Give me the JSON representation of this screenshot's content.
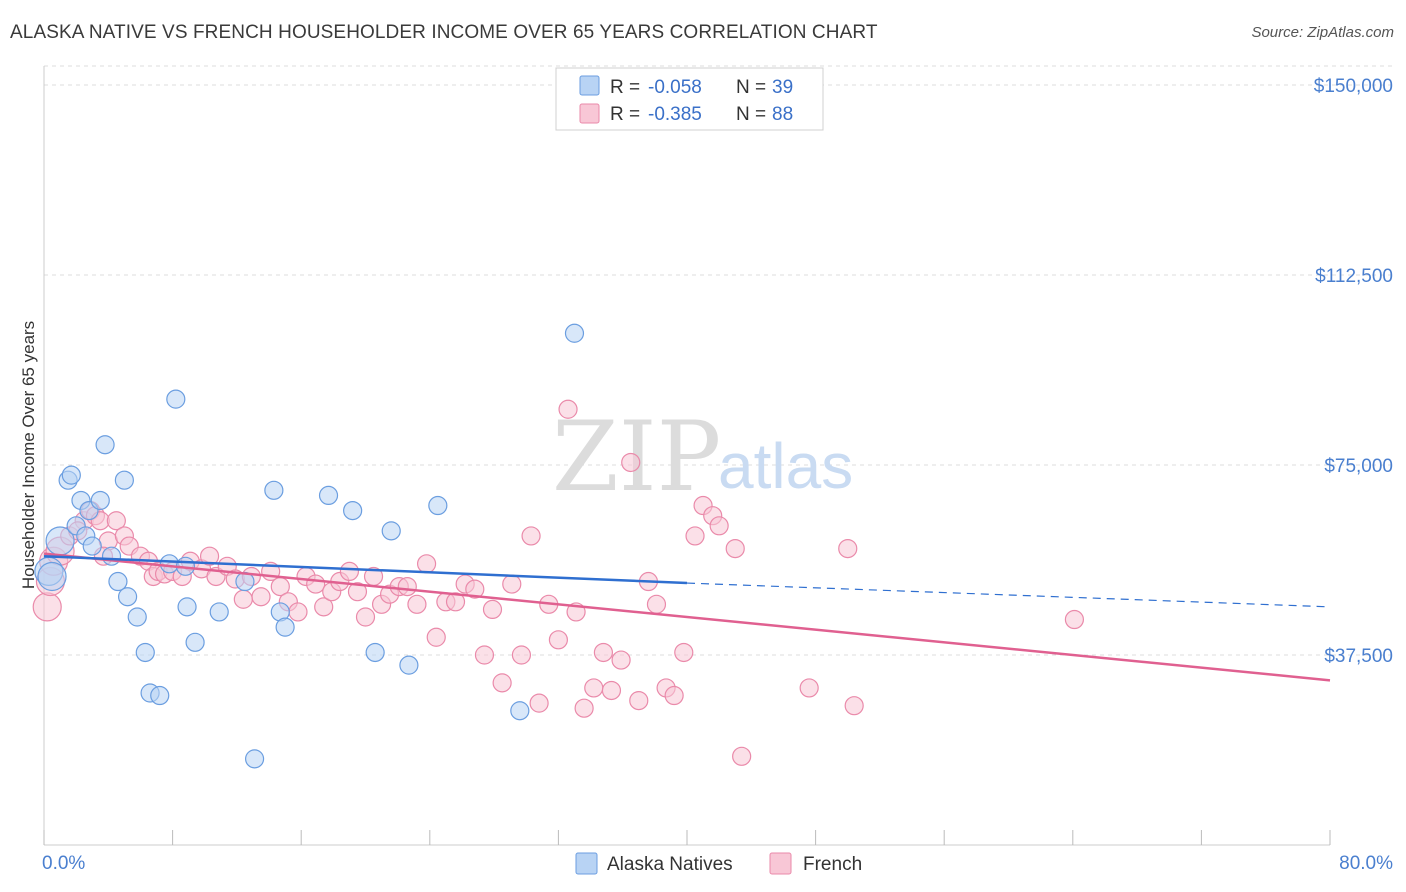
{
  "title": "ALASKA NATIVE VS FRENCH HOUSEHOLDER INCOME OVER 65 YEARS CORRELATION CHART",
  "source": "Source: ZipAtlas.com",
  "watermark": {
    "zip": "ZIP",
    "atlas": "atlas"
  },
  "colors": {
    "alaska_fill": "#b8d3f4",
    "alaska_stroke": "#6b9ee0",
    "alaska_line": "#2f6fd0",
    "french_fill": "#f8c7d6",
    "french_stroke": "#ea8aaa",
    "french_line": "#e06090",
    "grid": "#dddddd",
    "tick_text": "#4a7fcf"
  },
  "legend": {
    "rows": [
      {
        "r_label": "R =",
        "r_value": "-0.058",
        "n_label": "N =",
        "n_value": "39"
      },
      {
        "r_label": "R =",
        "r_value": "-0.385",
        "n_label": "N =",
        "n_value": "88"
      }
    ]
  },
  "chart_data": {
    "type": "scatter",
    "title": "ALASKA NATIVE VS FRENCH HOUSEHOLDER INCOME OVER 65 YEARS CORRELATION CHART",
    "xlabel": "",
    "ylabel": "Householder Income Over 65 years",
    "xlim": [
      0,
      80
    ],
    "ylim": [
      0,
      153750
    ],
    "x_tick_labels": [
      "0.0%",
      "80.0%"
    ],
    "y_ticks": [
      37500,
      75000,
      112500,
      150000
    ],
    "y_tick_labels": [
      "$37,500",
      "$75,000",
      "$112,500",
      "$150,000"
    ],
    "grid": true,
    "legend_position": "top-center",
    "series": [
      {
        "name": "Alaska Natives",
        "points": [
          [
            0.3,
            54000
          ],
          [
            0.5,
            53000
          ],
          [
            1.0,
            60000
          ],
          [
            1.5,
            72000
          ],
          [
            1.7,
            73000
          ],
          [
            2.0,
            63000
          ],
          [
            2.3,
            68000
          ],
          [
            2.6,
            61000
          ],
          [
            2.8,
            66000
          ],
          [
            3.0,
            59000
          ],
          [
            3.5,
            68000
          ],
          [
            3.8,
            79000
          ],
          [
            4.2,
            57000
          ],
          [
            4.6,
            52000
          ],
          [
            5.0,
            72000
          ],
          [
            5.2,
            49000
          ],
          [
            5.8,
            45000
          ],
          [
            6.3,
            38000
          ],
          [
            6.6,
            30000
          ],
          [
            7.2,
            29500
          ],
          [
            7.8,
            55500
          ],
          [
            8.2,
            88000
          ],
          [
            8.9,
            47000
          ],
          [
            9.4,
            40000
          ],
          [
            10.9,
            46000
          ],
          [
            12.5,
            52000
          ],
          [
            13.1,
            17000
          ],
          [
            14.3,
            70000
          ],
          [
            14.7,
            46000
          ],
          [
            15.0,
            43000
          ],
          [
            17.7,
            69000
          ],
          [
            19.2,
            66000
          ],
          [
            20.6,
            38000
          ],
          [
            21.6,
            62000
          ],
          [
            22.7,
            35500
          ],
          [
            24.5,
            67000
          ],
          [
            29.6,
            26500
          ],
          [
            33.0,
            101000
          ],
          [
            8.8,
            55000
          ]
        ],
        "trend": {
          "x": [
            0,
            40
          ],
          "y": [
            57000,
            51700
          ],
          "dashed_extension": {
            "x": [
              40,
              80
            ],
            "y": [
              51700,
              47000
            ]
          }
        }
      },
      {
        "name": "French",
        "points": [
          [
            0.2,
            47000
          ],
          [
            0.4,
            52000
          ],
          [
            0.6,
            56000
          ],
          [
            1.0,
            58000
          ],
          [
            1.6,
            61000
          ],
          [
            2.5,
            64000
          ],
          [
            2.9,
            66000
          ],
          [
            3.2,
            65000
          ],
          [
            3.5,
            64000
          ],
          [
            4.0,
            60000
          ],
          [
            4.5,
            64000
          ],
          [
            5.0,
            61000
          ],
          [
            5.3,
            59000
          ],
          [
            6.0,
            57000
          ],
          [
            6.5,
            56000
          ],
          [
            6.8,
            53000
          ],
          [
            7.1,
            54000
          ],
          [
            7.5,
            53500
          ],
          [
            8.0,
            54000
          ],
          [
            8.6,
            53000
          ],
          [
            9.1,
            56000
          ],
          [
            9.8,
            54500
          ],
          [
            10.3,
            57000
          ],
          [
            10.7,
            53000
          ],
          [
            11.4,
            55000
          ],
          [
            11.9,
            52500
          ],
          [
            12.4,
            48500
          ],
          [
            12.9,
            53000
          ],
          [
            13.5,
            49000
          ],
          [
            14.1,
            54000
          ],
          [
            14.7,
            51000
          ],
          [
            15.2,
            48000
          ],
          [
            15.8,
            46000
          ],
          [
            16.3,
            53000
          ],
          [
            16.9,
            51500
          ],
          [
            17.4,
            47000
          ],
          [
            17.9,
            50000
          ],
          [
            18.4,
            52000
          ],
          [
            19.0,
            54000
          ],
          [
            19.5,
            50000
          ],
          [
            20.0,
            45000
          ],
          [
            20.5,
            53000
          ],
          [
            21.0,
            47500
          ],
          [
            21.5,
            49500
          ],
          [
            22.1,
            51000
          ],
          [
            22.6,
            51000
          ],
          [
            23.2,
            47500
          ],
          [
            23.8,
            55500
          ],
          [
            24.4,
            41000
          ],
          [
            25.0,
            48000
          ],
          [
            25.6,
            48000
          ],
          [
            26.2,
            51500
          ],
          [
            26.8,
            50500
          ],
          [
            27.4,
            37500
          ],
          [
            27.9,
            46500
          ],
          [
            28.5,
            32000
          ],
          [
            29.1,
            51500
          ],
          [
            29.7,
            37500
          ],
          [
            30.3,
            61000
          ],
          [
            30.8,
            28000
          ],
          [
            31.4,
            47500
          ],
          [
            32.0,
            40500
          ],
          [
            32.6,
            86000
          ],
          [
            33.1,
            46000
          ],
          [
            33.6,
            27000
          ],
          [
            34.2,
            31000
          ],
          [
            34.8,
            38000
          ],
          [
            35.3,
            30500
          ],
          [
            35.9,
            36500
          ],
          [
            36.5,
            75500
          ],
          [
            37.0,
            28500
          ],
          [
            37.6,
            52000
          ],
          [
            38.1,
            47500
          ],
          [
            38.7,
            31000
          ],
          [
            39.2,
            29500
          ],
          [
            39.8,
            38000
          ],
          [
            40.5,
            61000
          ],
          [
            41.0,
            67000
          ],
          [
            41.6,
            65000
          ],
          [
            42.0,
            63000
          ],
          [
            43.0,
            58500
          ],
          [
            43.4,
            17500
          ],
          [
            47.6,
            31000
          ],
          [
            50.0,
            58500
          ],
          [
            50.4,
            27500
          ],
          [
            64.1,
            44500
          ],
          [
            2.1,
            62000
          ],
          [
            3.7,
            57000
          ]
        ],
        "trend": {
          "x": [
            0,
            80
          ],
          "y": [
            57500,
            32500
          ]
        }
      }
    ]
  },
  "bottom_legend": [
    "Alaska Natives",
    "French"
  ]
}
